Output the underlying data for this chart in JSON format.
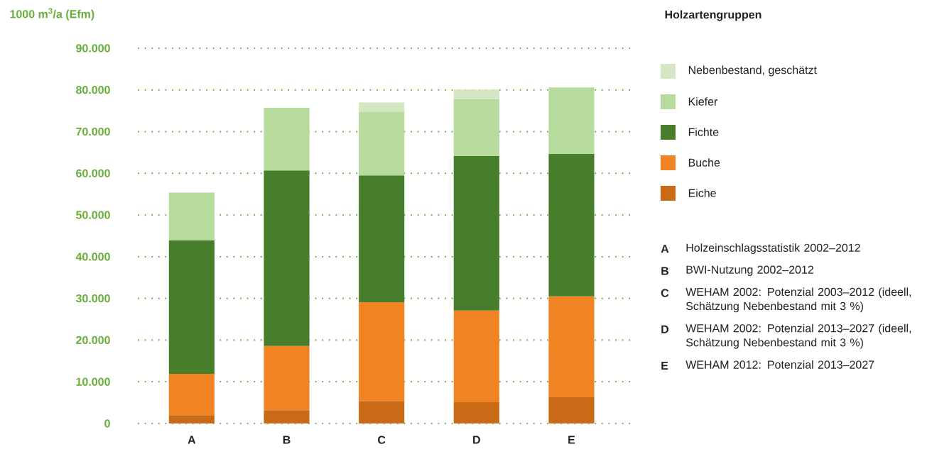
{
  "chart_data": {
    "type": "bar",
    "stacked": true,
    "ylabel": "1000 m$^{3}$/a (Efm)",
    "legend_title": "Holzartengruppen",
    "legend": "right",
    "grid": "y",
    "categories": [
      "A",
      "B",
      "C",
      "D",
      "E"
    ],
    "series": [
      {
        "name": "Eiche",
        "color": "#c96a17",
        "values": [
          2000,
          3200,
          5400,
          5100,
          6300
        ]
      },
      {
        "name": "Buche",
        "color": "#f28322",
        "values": [
          9900,
          15400,
          23700,
          22000,
          24200
        ]
      },
      {
        "name": "Fichte",
        "color": "#467e2b",
        "values": [
          32000,
          42100,
          30400,
          37100,
          34200
        ]
      },
      {
        "name": "Kiefer",
        "color": "#b7da9d",
        "values": [
          11500,
          15000,
          15200,
          13600,
          15900
        ]
      },
      {
        "name": "Nebenbestand, geschätzt",
        "color": "#d3e7c2",
        "values": [
          null,
          null,
          2300,
          2300,
          null
        ]
      }
    ],
    "ylim": [
      0,
      90000
    ],
    "yticks": [
      0,
      {
        "value": 10000,
        "label": "10.000"
      },
      {
        "value": 20000,
        "label": "20.000"
      },
      {
        "value": 30000,
        "label": "30.000"
      },
      {
        "value": 40000,
        "label": "40.000"
      },
      {
        "value": 50000,
        "label": "50.000"
      },
      {
        "value": 60000,
        "label": "60.000"
      },
      {
        "value": 70000,
        "label": "70.000"
      },
      {
        "value": 80000,
        "label": "80.000"
      },
      {
        "value": 90000,
        "label": "90.000"
      }
    ],
    "annotations": [
      "Holzeinschlagsstatistik 2002–2012",
      "BWI-Nutzung 2002–2012",
      "WEHAM 2002: Potenzial 2003–2012 (ideell, Schätzung Nebenbestand mit 3 %)",
      "WEHAM 2002: Potenzial 2013–2027 (ideell, Schätzung Nebenbestand mit 3 %)",
      "WEHAM 2012: Potenzial 2013–2027"
    ]
  }
}
